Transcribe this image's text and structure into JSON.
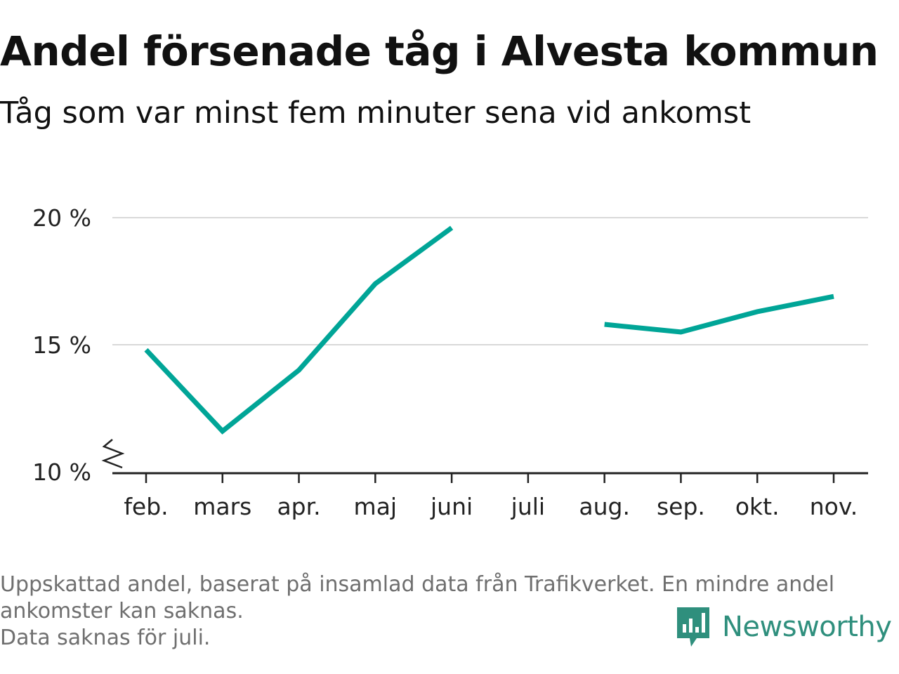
{
  "title": "Andel försenade tåg i Alvesta kommun",
  "subtitle": "Tåg som var minst fem minuter sena vid ankomst",
  "chart_data": {
    "type": "line",
    "categories": [
      "feb.",
      "mars",
      "apr.",
      "maj",
      "juni",
      "juli",
      "aug.",
      "sep.",
      "okt.",
      "nov."
    ],
    "series": [
      {
        "values": [
          14.8,
          11.6,
          14.0,
          17.4,
          19.6,
          null,
          15.8,
          15.5,
          16.3,
          16.9
        ]
      }
    ],
    "ylim": [
      10,
      20
    ],
    "yticks": [
      10,
      15,
      20
    ],
    "ytick_labels": [
      "10 %",
      "15 %",
      "20 %"
    ],
    "axis_break": true,
    "grid": true,
    "line_color": "#00a597"
  },
  "footnote": {
    "line1": "Uppskattad andel, baserat på insamlad data från Trafikverket. En mindre andel",
    "line2": "ankomster kan saknas.",
    "line3": "Data saknas för juli."
  },
  "brand": {
    "name": "Newsworthy",
    "logo_icon": "bar-chart-speech-bubble-icon",
    "color": "#2f8f7d"
  }
}
